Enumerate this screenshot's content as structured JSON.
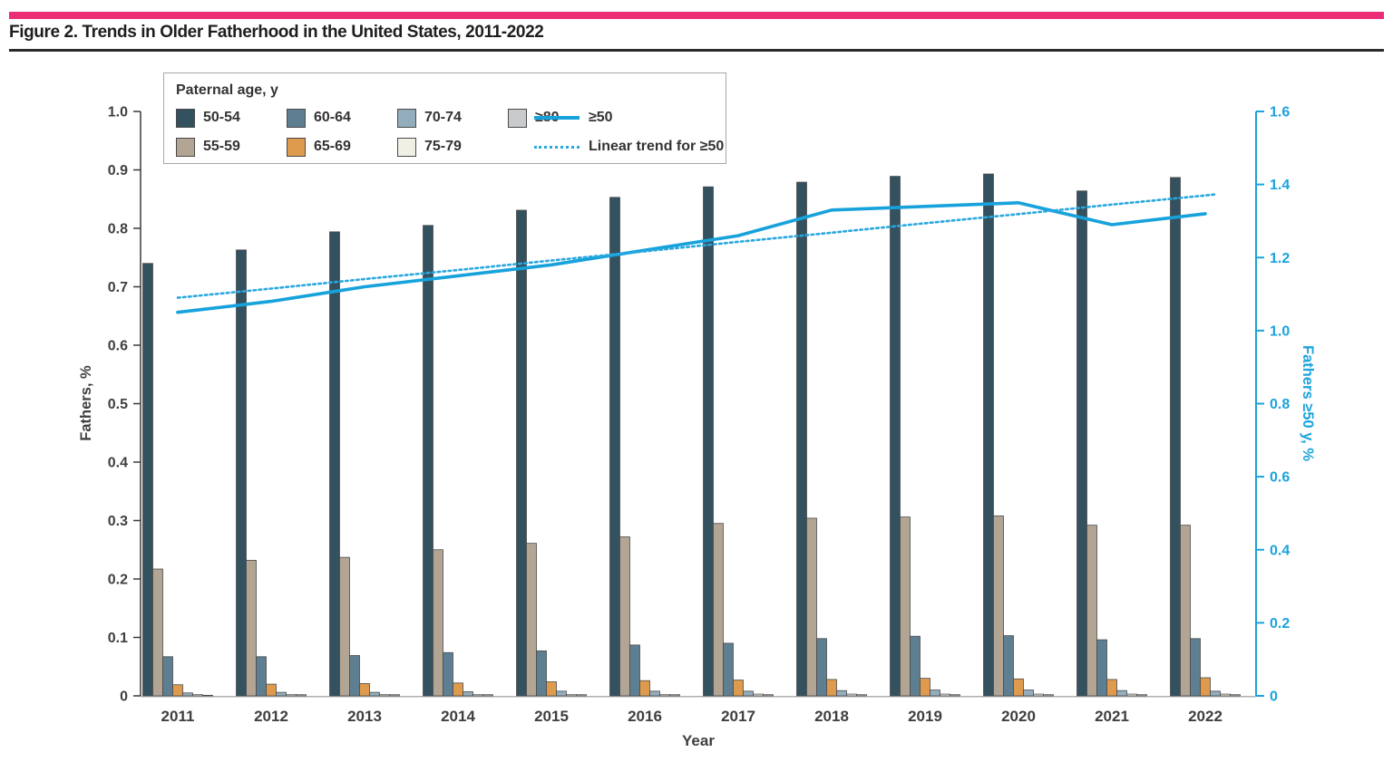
{
  "page": {
    "title": "Figure 2. Trends in Older Fatherhood in the United States, 2011-2022",
    "accent_color": "#EB2D76",
    "rule_color": "#2B2B2B"
  },
  "chart_data": {
    "type": "bar",
    "title": "Figure 2. Trends in Older Fatherhood in the United States, 2011-2022",
    "categories": [
      "2011",
      "2012",
      "2013",
      "2014",
      "2015",
      "2016",
      "2017",
      "2018",
      "2019",
      "2020",
      "2021",
      "2022"
    ],
    "xlabel": "Year",
    "legend": {
      "title": "Paternal age, y"
    },
    "left_axis": {
      "label": "Fathers, %",
      "tick_labels": [
        "0",
        "0.1",
        "0.2",
        "0.3",
        "0.4",
        "0.5",
        "0.6",
        "0.7",
        "0.8",
        "0.9",
        "1.0"
      ],
      "range": [
        0,
        1.0
      ],
      "color": "#3a3a3a",
      "text_color": "#3f3f3f"
    },
    "right_axis": {
      "label": "Fathers ≥50 y, %",
      "tick_labels": [
        "0",
        "0.2",
        "0.4",
        "0.6",
        "0.8",
        "1.0",
        "1.2",
        "1.4",
        "1.6"
      ],
      "range": [
        0,
        1.6
      ],
      "color": "#1AA3DC",
      "text_color": "#1AA3DC"
    },
    "grid": "off",
    "legend_position": "top-left box",
    "bar_series": [
      {
        "name": "50-54",
        "color": "#33515F",
        "values": [
          0.74,
          0.763,
          0.794,
          0.805,
          0.831,
          0.853,
          0.871,
          0.879,
          0.889,
          0.893,
          0.864,
          0.887
        ]
      },
      {
        "name": "55-59",
        "color": "#B2A594",
        "values": [
          0.217,
          0.232,
          0.237,
          0.25,
          0.261,
          0.272,
          0.295,
          0.304,
          0.306,
          0.308,
          0.292,
          0.292
        ]
      },
      {
        "name": "60-64",
        "color": "#5E7F92",
        "values": [
          0.067,
          0.067,
          0.069,
          0.074,
          0.077,
          0.087,
          0.09,
          0.098,
          0.102,
          0.103,
          0.096,
          0.098
        ]
      },
      {
        "name": "65-69",
        "color": "#DE9B4E",
        "values": [
          0.019,
          0.02,
          0.021,
          0.022,
          0.024,
          0.026,
          0.027,
          0.028,
          0.03,
          0.029,
          0.028,
          0.031
        ]
      },
      {
        "name": "70-74",
        "color": "#93ADBD",
        "values": [
          0.005,
          0.006,
          0.006,
          0.007,
          0.008,
          0.008,
          0.008,
          0.009,
          0.01,
          0.01,
          0.009,
          0.008
        ]
      },
      {
        "name": "75-79",
        "color": "#F1F0E5",
        "values": [
          0.002,
          0.002,
          0.002,
          0.002,
          0.002,
          0.002,
          0.003,
          0.003,
          0.003,
          0.003,
          0.003,
          0.003
        ]
      },
      {
        "name": "≥80",
        "color": "#C8CACB",
        "values": [
          0.001,
          0.002,
          0.002,
          0.002,
          0.002,
          0.002,
          0.002,
          0.002,
          0.002,
          0.002,
          0.002,
          0.002
        ]
      }
    ],
    "line_series": [
      {
        "name": "≥50",
        "axis": "right",
        "style": "solid",
        "color": "#17A2DC",
        "values": [
          1.05,
          1.08,
          1.12,
          1.15,
          1.18,
          1.22,
          1.26,
          1.33,
          1.34,
          1.35,
          1.29,
          1.32
        ]
      },
      {
        "name": "Linear trend for ≥50",
        "axis": "right",
        "style": "dotted",
        "color": "#29A8DF",
        "values": [
          1.09,
          1.115,
          1.141,
          1.166,
          1.192,
          1.217,
          1.243,
          1.268,
          1.294,
          1.319,
          1.345,
          1.37
        ]
      }
    ]
  }
}
